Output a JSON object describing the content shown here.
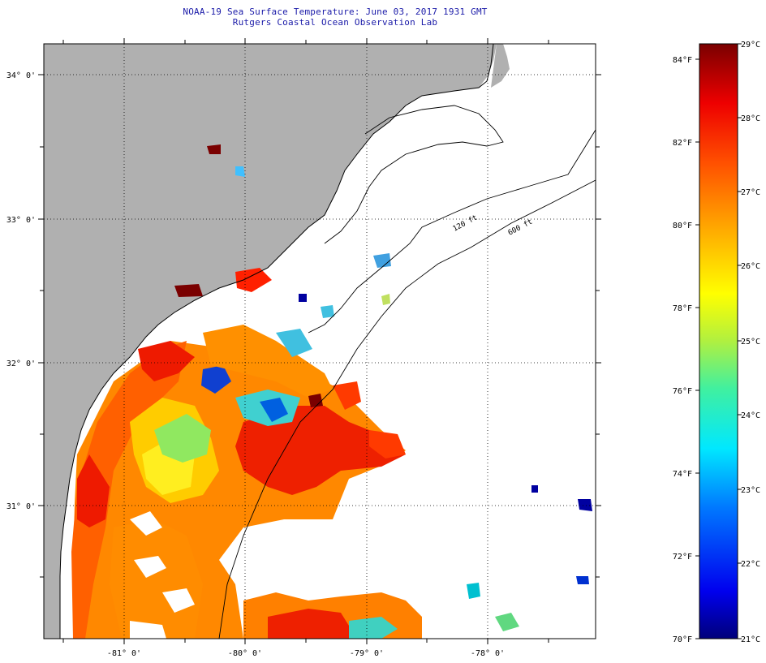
{
  "header": {
    "title": "NOAA-19 Sea Surface Temperature:  June 03, 2017 1931 GMT",
    "subtitle": "Rutgers Coastal Ocean Observation Lab"
  },
  "map": {
    "lat_labels": [
      "34° 0'",
      "33° 0'",
      "32° 0'",
      "31° 0'"
    ],
    "lon_labels": [
      "-81° 0'",
      "-80° 0'",
      "-79° 0'",
      "-78° 0'"
    ],
    "isobath_labels": [
      "120 ft",
      "600 ft"
    ],
    "colors": {
      "land": "#b0b0b0",
      "no_data": "#ffffff",
      "coastline": "#000000"
    }
  },
  "colorbar": {
    "fahrenheit_labels": [
      "84°F",
      "82°F",
      "80°F",
      "78°F",
      "76°F",
      "74°F",
      "72°F",
      "70°F"
    ],
    "celsius_labels": [
      "29°C",
      "28°C",
      "27°C",
      "26°C",
      "25°C",
      "24°C",
      "23°C",
      "22°C",
      "21°C"
    ],
    "colors_low_to_high": [
      "#00007a",
      "#0000ee",
      "#0078ff",
      "#00e8ff",
      "#40f0a0",
      "#b0f040",
      "#ffff00",
      "#ffb000",
      "#ff5000",
      "#ee0000",
      "#7a0000"
    ]
  }
}
